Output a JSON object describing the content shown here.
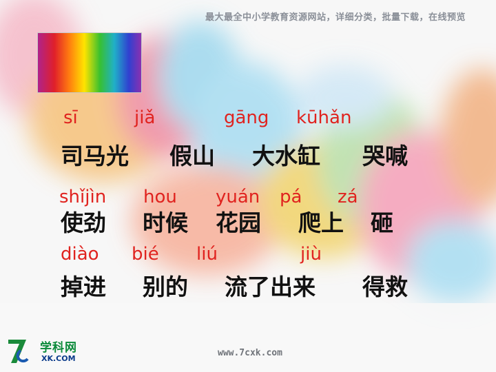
{
  "header": {
    "caption": "最大最全中小学教育资源网站，详细分类，批量下载，在线预览"
  },
  "pinyin_row1": [
    "sī",
    "jiǎ",
    "gāng",
    "kūhǎn"
  ],
  "words_row1": [
    "司马光",
    "假山",
    "大水缸",
    "哭喊"
  ],
  "pinyin_row2": [
    "shǐjìn",
    "hou",
    "yuán",
    "pá",
    "zá"
  ],
  "words_row2": [
    "使劲",
    "时候",
    "花园",
    "爬上",
    "砸"
  ],
  "pinyin_row3": [
    "diào",
    "bié",
    "liú",
    "jiù"
  ],
  "words_row3": [
    "掉进",
    "别的",
    "流了出来",
    "得救"
  ],
  "footer": {
    "brand": "学科网",
    "brand_sub": "XK.COM",
    "url": "www.7cxk.com"
  },
  "colors": {
    "pinyin": "#e0231f",
    "characters": "#111111"
  }
}
